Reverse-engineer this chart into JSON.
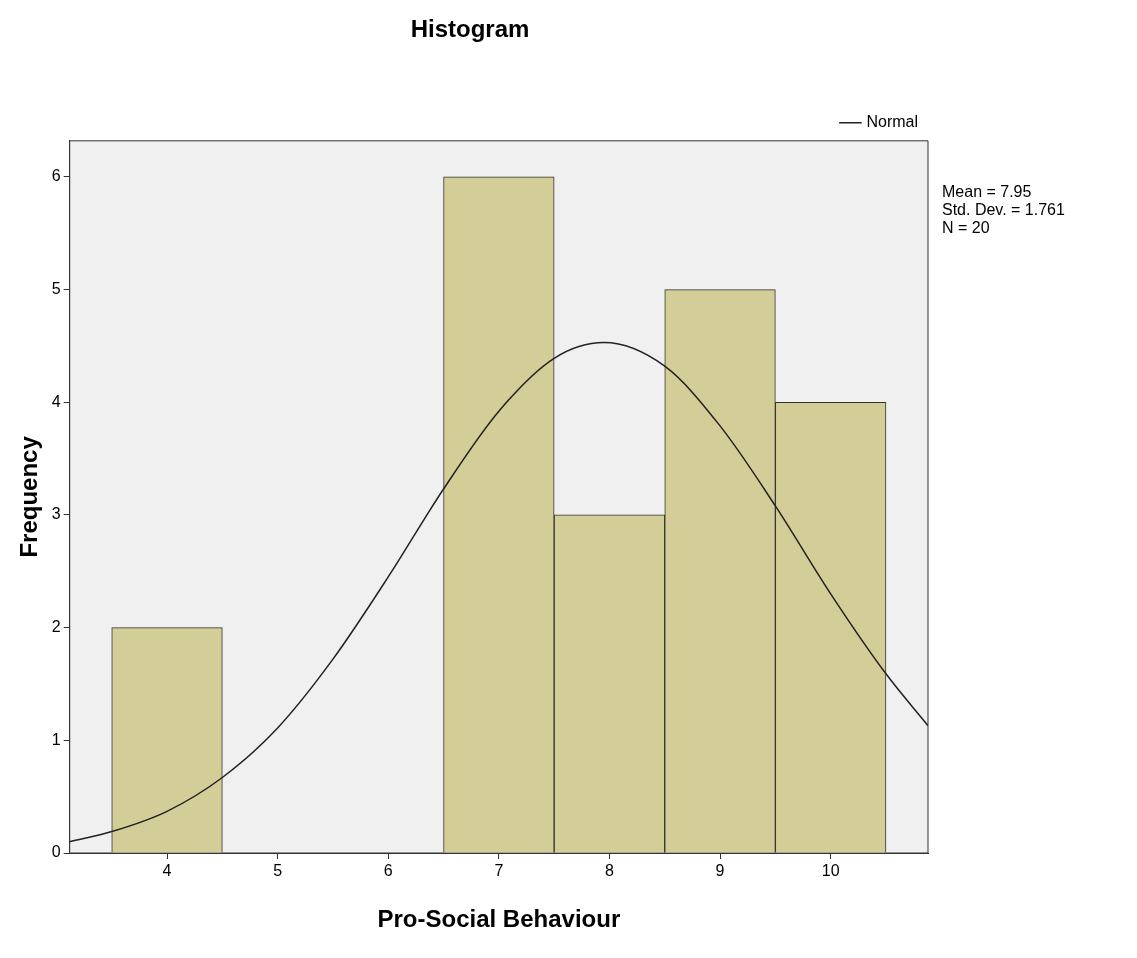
{
  "chart_data": {
    "type": "histogram",
    "title": "Histogram",
    "xlabel": "Pro-Social Behaviour",
    "ylabel": "Frequency",
    "bins": [
      3.5,
      4.5,
      5.5,
      6.5,
      7.5,
      8.5,
      9.5,
      10.5
    ],
    "values": [
      2,
      0,
      0,
      6,
      3,
      5,
      4
    ],
    "color": "#d3ce97",
    "series": [
      {
        "name": "Normal",
        "type": "line",
        "color": "#222222",
        "marker": "none",
        "x": [
          3.12,
          3.5,
          4,
          4.5,
          5,
          5.5,
          6,
          6.5,
          7,
          7.5,
          7.95,
          8.5,
          9,
          9.5,
          10,
          10.5,
          10.88
        ],
        "values": [
          0.1,
          0.19,
          0.37,
          0.67,
          1.11,
          1.72,
          2.45,
          3.23,
          3.92,
          4.39,
          4.53,
          4.32,
          3.79,
          3.08,
          2.3,
          1.59,
          1.13
        ]
      }
    ],
    "xlim": [
      3.12,
      10.88
    ],
    "xticks": [
      4,
      5,
      6,
      7,
      8,
      9,
      10
    ],
    "ylim": [
      0,
      6.32
    ],
    "yticks": [
      0,
      1,
      2,
      3,
      4,
      5,
      6
    ],
    "grid": false,
    "legend": "top right",
    "annotations": [
      "Mean = 7.95",
      "Std. Dev. = 1.761",
      "N = 20"
    ]
  }
}
